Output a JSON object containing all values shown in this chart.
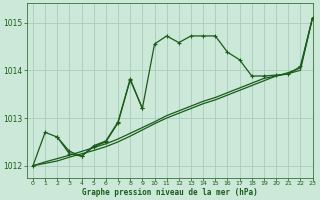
{
  "title": "Graphe pression niveau de la mer (hPa)",
  "bg_color": "#cce8d8",
  "grid_color": "#aaccbb",
  "line_color": "#1a5c1a",
  "xlim": [
    -0.5,
    23
  ],
  "ylim": [
    1011.75,
    1015.4
  ],
  "yticks": [
    1012,
    1013,
    1014,
    1015
  ],
  "xticks": [
    0,
    1,
    2,
    3,
    4,
    5,
    6,
    7,
    8,
    9,
    10,
    11,
    12,
    13,
    14,
    15,
    16,
    17,
    18,
    19,
    20,
    21,
    22,
    23
  ],
  "trend_x": [
    0,
    1,
    2,
    3,
    4,
    5,
    6,
    7,
    8,
    9,
    10,
    11,
    12,
    13,
    14,
    15,
    16,
    17,
    18,
    19,
    20,
    21,
    22,
    23
  ],
  "trend_y": [
    1012.0,
    1012.05,
    1012.1,
    1012.18,
    1012.25,
    1012.32,
    1012.4,
    1012.5,
    1012.62,
    1012.75,
    1012.88,
    1013.0,
    1013.1,
    1013.2,
    1013.3,
    1013.38,
    1013.48,
    1013.58,
    1013.68,
    1013.78,
    1013.88,
    1013.95,
    1014.05,
    1015.1
  ],
  "main_x": [
    0,
    1,
    2,
    3,
    4,
    5,
    6,
    7,
    8,
    9,
    10,
    11,
    12,
    13,
    14,
    15,
    16,
    17,
    18,
    19,
    20,
    21,
    22,
    23
  ],
  "main_y": [
    1012.0,
    1012.7,
    1012.6,
    1012.3,
    1012.2,
    1012.4,
    1012.5,
    1012.9,
    1013.8,
    1013.2,
    1014.55,
    1014.72,
    1014.58,
    1014.72,
    1014.72,
    1014.72,
    1014.38,
    1014.22,
    1013.88,
    1013.88,
    1013.9,
    1013.92,
    1014.08,
    1015.1
  ],
  "extra_x": [
    2,
    3,
    4,
    5,
    6,
    7,
    8,
    9
  ],
  "extra_y": [
    1012.6,
    1012.25,
    1012.2,
    1012.42,
    1012.52,
    1012.92,
    1013.82,
    1013.2
  ],
  "trend2_x": [
    0,
    1,
    2,
    3,
    4,
    5,
    6,
    7,
    8,
    9,
    10,
    11,
    12,
    13,
    14,
    15,
    16,
    17,
    18,
    19,
    20,
    21,
    22,
    23
  ],
  "trend2_y": [
    1012.0,
    1012.08,
    1012.15,
    1012.22,
    1012.3,
    1012.38,
    1012.46,
    1012.56,
    1012.68,
    1012.8,
    1012.92,
    1013.05,
    1013.15,
    1013.25,
    1013.35,
    1013.43,
    1013.53,
    1013.63,
    1013.73,
    1013.83,
    1013.88,
    1013.93,
    1014.0,
    1015.1
  ]
}
